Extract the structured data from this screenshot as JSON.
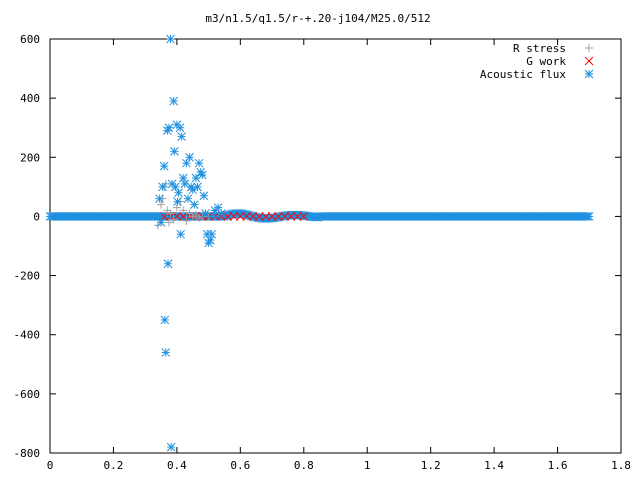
{
  "chart_data": {
    "type": "scatter",
    "title": "m3/n1.5/q1.5/r-+.20-j104/M25.0/512",
    "xlabel": "",
    "ylabel": "",
    "xlim": [
      0,
      1.8
    ],
    "ylim": [
      -800,
      600
    ],
    "x_ticks": [
      "0",
      "0.2",
      "0.4",
      "0.6",
      "0.8",
      "1",
      "1.2",
      "1.4",
      "1.6",
      "1.8"
    ],
    "y_ticks": [
      "600",
      "400",
      "200",
      "0",
      "-200",
      "-400",
      "-600",
      "-800"
    ],
    "x_tick_values": [
      0,
      0.2,
      0.4,
      0.6,
      0.8,
      1.0,
      1.2,
      1.4,
      1.6,
      1.8
    ],
    "y_tick_values": [
      600,
      400,
      200,
      0,
      -200,
      -400,
      -600,
      -800
    ],
    "grid": false,
    "legend_position": "top-right",
    "series": [
      {
        "name": "R stress",
        "marker": "plus",
        "color": "#a0a0a0",
        "x": [
          0.34,
          0.35,
          0.355,
          0.36,
          0.365,
          0.37,
          0.375,
          0.38,
          0.39,
          0.4,
          0.41,
          0.42,
          0.43,
          0.44,
          0.45,
          0.46,
          0.47,
          0.48,
          0.5
        ],
        "y": [
          -30,
          40,
          60,
          100,
          110,
          20,
          -20,
          10,
          -10,
          30,
          50,
          20,
          -15,
          10,
          0,
          5,
          -5,
          0,
          0
        ]
      },
      {
        "name": "G work",
        "marker": "cross",
        "color": "#ff0000",
        "x": [
          0.36,
          0.38,
          0.4,
          0.42,
          0.44,
          0.46,
          0.48,
          0.5,
          0.52,
          0.54,
          0.56,
          0.58,
          0.6,
          0.62,
          0.64,
          0.66,
          0.68,
          0.7,
          0.72,
          0.74,
          0.76,
          0.78,
          0.8
        ],
        "y": [
          0,
          0,
          0,
          0,
          0,
          0,
          0,
          0,
          0,
          0,
          0,
          0,
          0,
          0,
          0,
          0,
          0,
          0,
          0,
          0,
          0,
          0,
          0
        ]
      },
      {
        "name": "Acoustic flux",
        "marker": "star",
        "color": "#1e90e0",
        "x": [
          0.34,
          0.345,
          0.35,
          0.355,
          0.36,
          0.362,
          0.365,
          0.37,
          0.372,
          0.375,
          0.38,
          0.382,
          0.385,
          0.39,
          0.392,
          0.395,
          0.4,
          0.402,
          0.405,
          0.41,
          0.412,
          0.415,
          0.42,
          0.425,
          0.43,
          0.435,
          0.44,
          0.445,
          0.45,
          0.455,
          0.46,
          0.465,
          0.47,
          0.475,
          0.48,
          0.485,
          0.49,
          0.495,
          0.5,
          0.505,
          0.51,
          0.515,
          0.52,
          0.53,
          0.54
        ],
        "y": [
          0,
          60,
          -20,
          100,
          170,
          -350,
          -460,
          290,
          -160,
          300,
          600,
          -780,
          110,
          390,
          220,
          100,
          310,
          50,
          80,
          300,
          -60,
          270,
          130,
          110,
          180,
          60,
          200,
          100,
          90,
          40,
          130,
          100,
          180,
          150,
          140,
          70,
          10,
          -60,
          -90,
          -80,
          -60,
          0,
          20,
          30,
          10
        ]
      }
    ]
  }
}
